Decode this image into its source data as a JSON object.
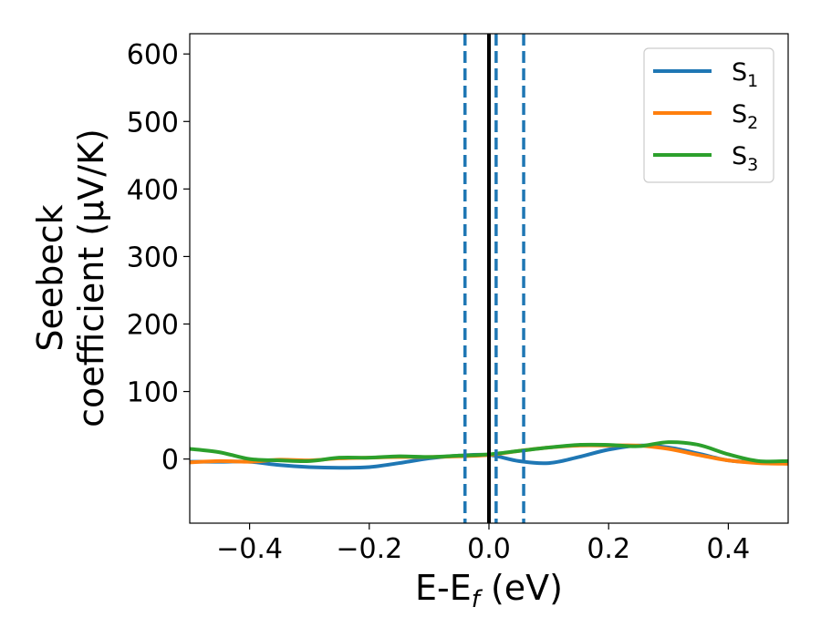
{
  "chart_data": {
    "type": "line",
    "xlabel": {
      "main": "E-E",
      "sub": "f",
      "unit": " (eV)"
    },
    "ylabel": {
      "line1": "Seebeck",
      "line2": "coefficient  (μV/K)"
    },
    "xlim": [
      -0.5,
      0.5
    ],
    "ylim": [
      -95,
      630
    ],
    "x_ticks": [
      -0.4,
      -0.2,
      0.0,
      0.2,
      0.4
    ],
    "x_tick_labels": [
      "−0.4",
      "−0.2",
      "0.0",
      "0.2",
      "0.4"
    ],
    "y_ticks": [
      0,
      100,
      200,
      300,
      400,
      500,
      600
    ],
    "y_tick_labels": [
      "0",
      "100",
      "200",
      "300",
      "400",
      "500",
      "600"
    ],
    "grid": false,
    "legend_position": "top-right",
    "x": [
      -0.5,
      -0.45,
      -0.4,
      -0.35,
      -0.3,
      -0.25,
      -0.2,
      -0.15,
      -0.1,
      -0.05,
      0.0,
      0.05,
      0.1,
      0.15,
      0.2,
      0.25,
      0.3,
      0.35,
      0.4,
      0.45,
      0.5
    ],
    "series": [
      {
        "name": "S",
        "sub": "1",
        "color": "#1f77b4",
        "values": [
          -4,
          -4,
          -4,
          -9,
          -12,
          -13,
          -12,
          -6,
          1,
          5,
          6,
          -3,
          -6,
          3,
          14,
          20,
          17,
          8,
          -2,
          -5,
          -6
        ]
      },
      {
        "name": "S",
        "sub": "2",
        "color": "#ff7f0e",
        "values": [
          -5,
          -3,
          -4,
          -1,
          -2,
          1,
          2,
          3,
          3,
          4,
          6,
          12,
          17,
          20,
          20,
          20,
          15,
          6,
          -2,
          -6,
          -7
        ]
      },
      {
        "name": "S",
        "sub": "3",
        "color": "#2ca02c",
        "values": [
          15,
          10,
          0,
          -2,
          -3,
          2,
          2,
          4,
          3,
          5,
          7,
          12,
          17,
          21,
          21,
          19,
          25,
          21,
          7,
          -3,
          -3
        ]
      }
    ],
    "vertical_lines": [
      {
        "x": -0.04,
        "style": "dashed",
        "color": "#1f77b4"
      },
      {
        "x": 0.0,
        "style": "solid",
        "color": "#000000"
      },
      {
        "x": 0.012,
        "style": "dashed",
        "color": "#1f77b4"
      },
      {
        "x": 0.058,
        "style": "dashed",
        "color": "#1f77b4"
      }
    ]
  }
}
